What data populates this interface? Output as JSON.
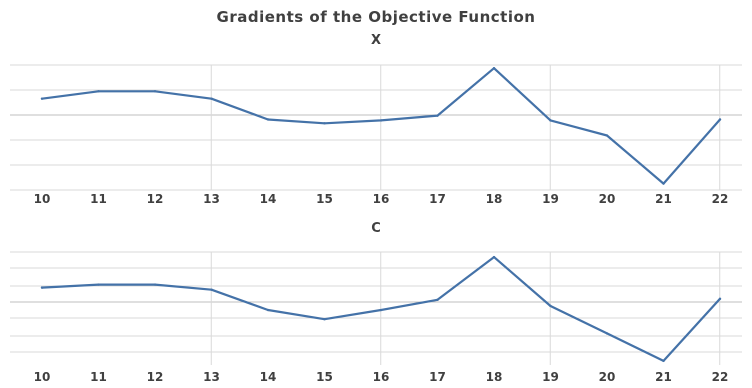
{
  "figure_title": "Gradients of the Objective Function",
  "chart_data": [
    {
      "type": "line",
      "title": "X",
      "categories": [
        "10",
        "11",
        "12",
        "13",
        "14",
        "15",
        "16",
        "17",
        "18",
        "19",
        "20",
        "21",
        "22"
      ],
      "series": [
        {
          "values": [
            0.55,
            0.78,
            0.78,
            0.55,
            -0.1,
            -0.22,
            -0.13,
            0.02,
            1.5,
            -0.13,
            -0.6,
            -2.1,
            -0.1
          ]
        }
      ],
      "ylim": [
        -2.3,
        1.6
      ],
      "grid": true,
      "color": "#4472a8"
    },
    {
      "type": "line",
      "title": "C",
      "categories": [
        "10",
        "11",
        "12",
        "13",
        "14",
        "15",
        "16",
        "17",
        "18",
        "19",
        "20",
        "21",
        "22"
      ],
      "series": [
        {
          "values": [
            0.55,
            0.7,
            0.7,
            0.45,
            -0.55,
            -1.0,
            -0.55,
            -0.05,
            2.05,
            -0.35,
            -1.7,
            -3.05,
            0.0
          ]
        }
      ],
      "ylim": [
        -3.25,
        2.3
      ],
      "grid": true,
      "color": "#4472a8"
    }
  ]
}
